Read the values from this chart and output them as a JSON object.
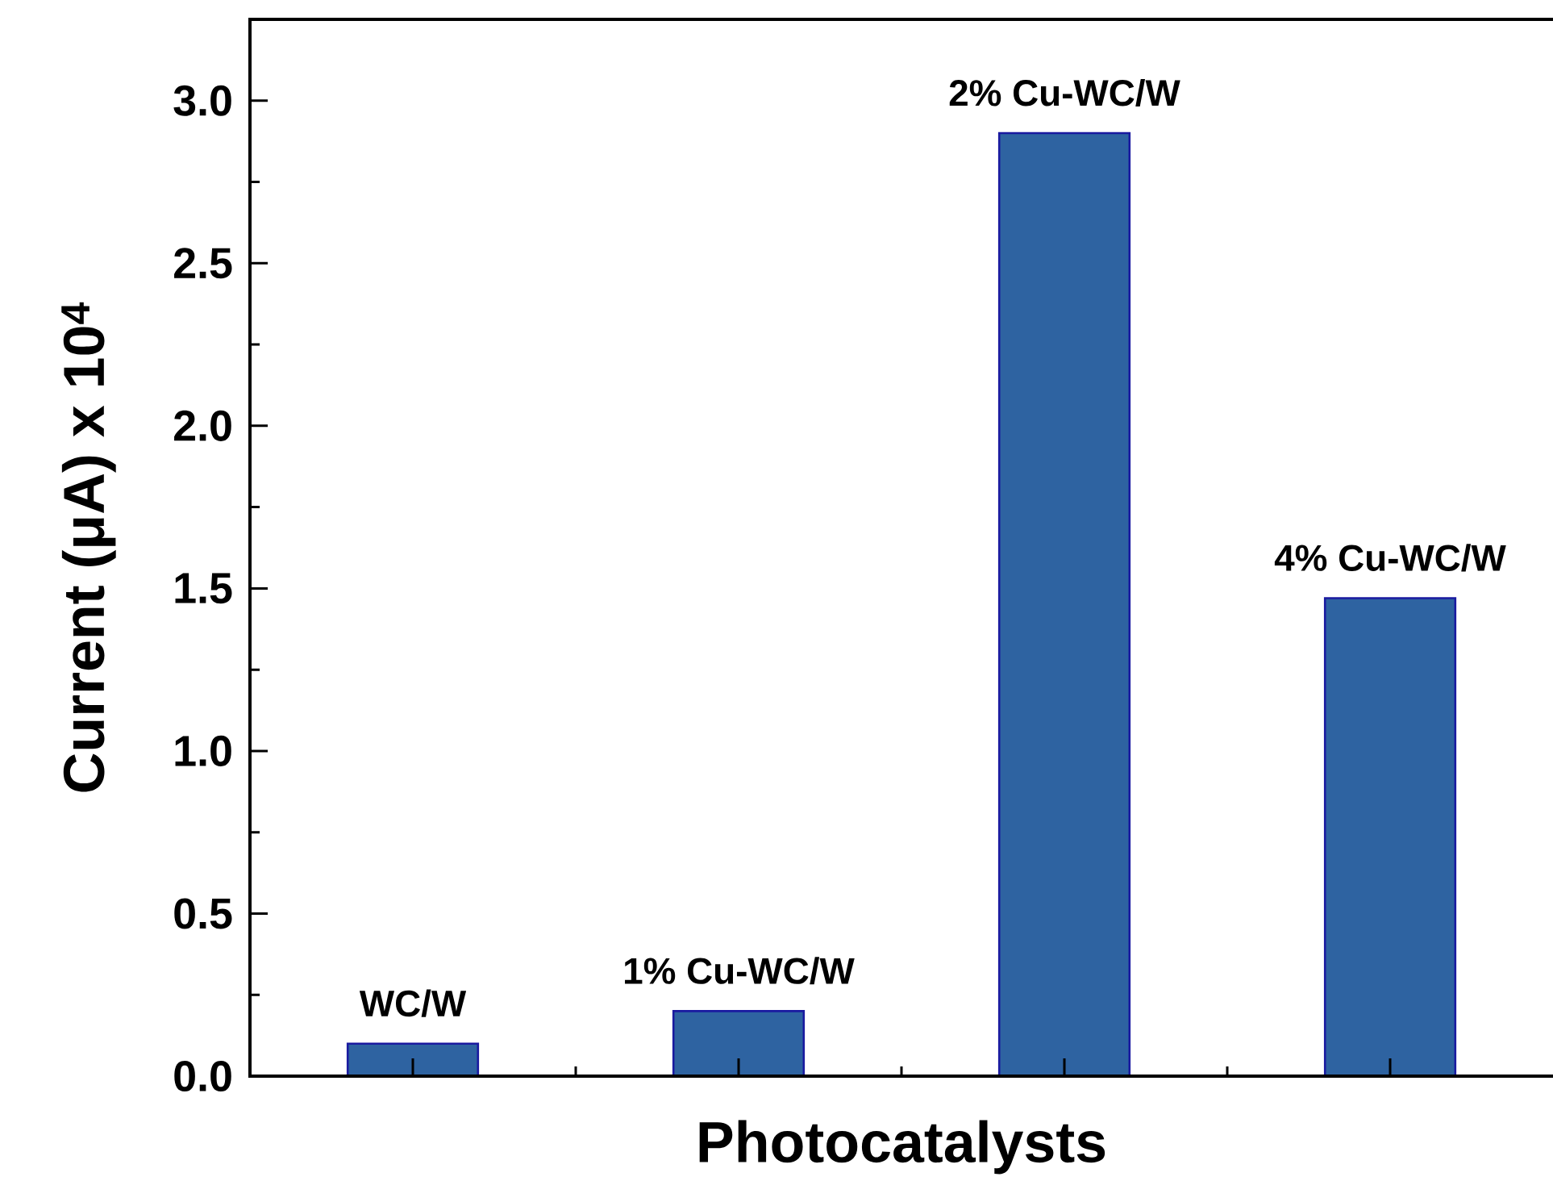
{
  "chart_data": {
    "type": "bar",
    "xlabel": "Photocatalysts",
    "ylabel": "Current (μA) x 10$^{4}$",
    "categories": [
      "WC/W",
      "1% Cu-WC/W",
      "2% Cu-WC/W",
      "4% Cu-WC/W"
    ],
    "values": [
      0.1,
      0.2,
      2.9,
      1.47
    ],
    "color": "#2e63a1",
    "ylim": [
      0,
      3.25
    ],
    "yticks": [
      {
        "value": 0,
        "label": "0.0"
      },
      0.5,
      {
        "value": 1,
        "label": "1.0"
      },
      1.5,
      {
        "value": 2,
        "label": "2.0"
      },
      2.5,
      {
        "value": 3,
        "label": "3.0"
      }
    ],
    "tick_labels": "y"
  }
}
